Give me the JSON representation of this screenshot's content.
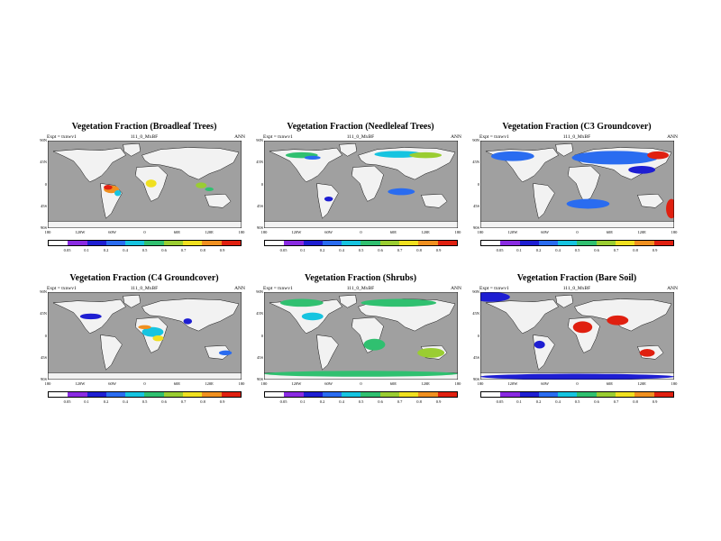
{
  "panels": [
    {
      "title": "Vegetation Fraction (Broadleaf Trees)",
      "expt": "Expt = txnwv1",
      "run": "111_0_MxBF",
      "period": "ANN",
      "dominant": "broadleaf"
    },
    {
      "title": "Vegetation Fraction (Needleleaf Trees)",
      "expt": "Expt = txnwv1",
      "run": "111_0_MxBF",
      "period": "ANN",
      "dominant": "needleleaf"
    },
    {
      "title": "Vegetation Fraction (C3 Groundcover)",
      "expt": "Expt = txnwv1",
      "run": "111_0_MxBF",
      "period": "ANN",
      "dominant": "c3"
    },
    {
      "title": "Vegetation Fraction (C4 Groundcover)",
      "expt": "Expt = txnwv1",
      "run": "111_0_MxBF",
      "period": "ANN",
      "dominant": "c4"
    },
    {
      "title": "Vegetation Fraction (Shrubs)",
      "expt": "Expt = txnwv1",
      "run": "111_0_MxBF",
      "period": "ANN",
      "dominant": "shrubs"
    },
    {
      "title": "Vegetation Fraction (Bare Soil)",
      "expt": "Expt = txnwv1",
      "run": "111_0_MxBF",
      "period": "ANN",
      "dominant": "bare"
    }
  ],
  "lat_labels": [
    "90N",
    "45N",
    "0",
    "45S",
    "90S"
  ],
  "lon_labels": [
    "180",
    "120W",
    "60W",
    "0",
    "60E",
    "120E",
    "180"
  ],
  "colorbar_labels": [
    "0.05",
    "0.1",
    "0.2",
    "0.4",
    "0.5",
    "0.6",
    "0.7",
    "0.8",
    "0.9"
  ],
  "colorbar_labels_alt": [
    "0.05",
    "0.1",
    "0.2",
    "0.4",
    "0.5",
    "0.6",
    "0.7",
    "0.8",
    "0.9"
  ],
  "colors": {
    "ocean": "#a0a0a0",
    "land": "#f2f2f2",
    "scale": [
      "#ffffff",
      "#8a2be2",
      "#1e1ed2",
      "#2a6cf0",
      "#16c4e0",
      "#30c070",
      "#9acd32",
      "#f0e020",
      "#f09020",
      "#e02010"
    ]
  }
}
